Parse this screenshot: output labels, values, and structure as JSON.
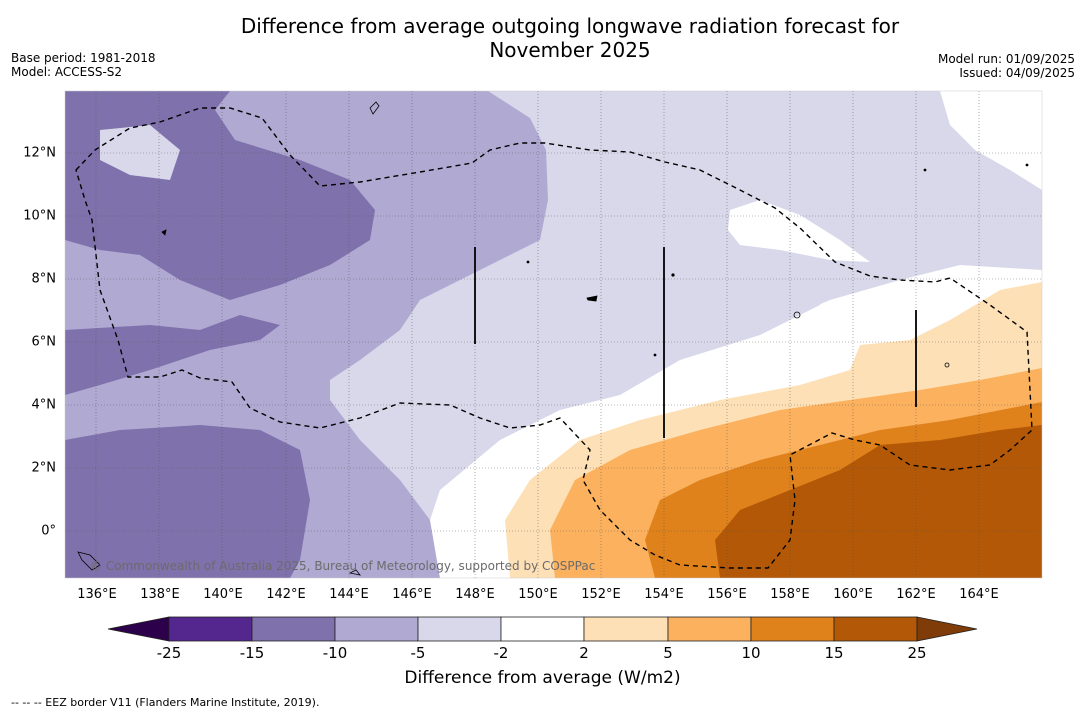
{
  "header": {
    "title_line1": "Difference from average outgoing longwave radiation forecast for",
    "title_line2": "November 2025",
    "base_period": "Base period: 1981-2018",
    "model": "Model: ACCESS-S2",
    "model_run": "Model run: 01/09/2025",
    "issued": "Issued: 04/09/2025"
  },
  "map": {
    "lon_ticks": [
      "136°E",
      "138°E",
      "140°E",
      "142°E",
      "144°E",
      "146°E",
      "148°E",
      "150°E",
      "152°E",
      "154°E",
      "156°E",
      "158°E",
      "160°E",
      "162°E",
      "164°E"
    ],
    "lat_ticks": [
      "12°N",
      "10°N",
      "8°N",
      "6°N",
      "4°N",
      "2°N",
      "0°"
    ],
    "copyright": "© Commonwealth of Australia 2025, Bureau of Meteorology, supported by COSPPac"
  },
  "colorbar": {
    "labels": [
      "-25",
      "-15",
      "-10",
      "-5",
      "-2",
      "2",
      "5",
      "10",
      "15",
      "25"
    ],
    "colors": [
      "#54278f",
      "#7f71ac",
      "#b0a9d2",
      "#d8d8ea",
      "#ffffff",
      "#fee0b6",
      "#fbb15e",
      "#e0821c",
      "#b35806"
    ],
    "low_extend": "#2d004b",
    "high_extend": "#7f3b08",
    "title": "Difference from average (W/m2)"
  },
  "footnote": "-- -- -- EEZ border V11 (Flanders Marine Institute, 2019)."
}
